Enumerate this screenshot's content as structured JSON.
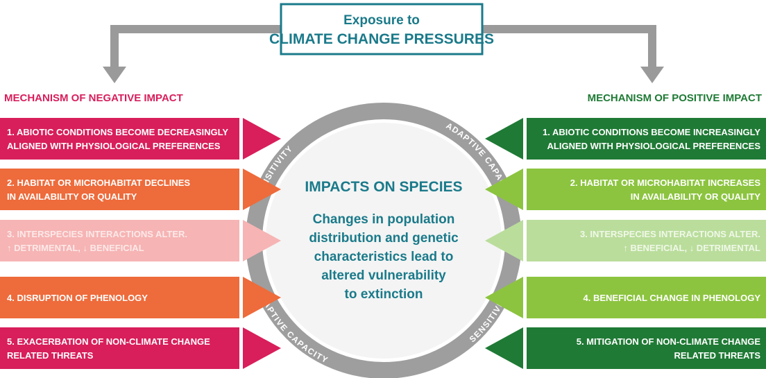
{
  "top_box": {
    "lines": [
      "Exposure to",
      "CLIMATE CHANGE PRESSURES"
    ]
  },
  "left": {
    "heading": "MECHANISM OF NEGATIVE IMPACT",
    "items": [
      {
        "lines": [
          "1. ABIOTIC CONDITIONS BECOME DECREASINGLY",
          "ALIGNED WITH PHYSIOLOGICAL PREFERENCES"
        ]
      },
      {
        "lines": [
          "2. HABITAT OR MICROHABITAT DECLINES",
          "IN AVAILABILITY OR QUALITY"
        ]
      },
      {
        "lines": [
          "3. INTERSPECIES INTERACTIONS ALTER.",
          "↑ DETRIMENTAL, ↓ BENEFICIAL"
        ]
      },
      {
        "lines": [
          "4. DISRUPTION OF PHENOLOGY"
        ]
      },
      {
        "lines": [
          "5. EXACERBATION OF NON-CLIMATE CHANGE",
          "RELATED THREATS"
        ]
      }
    ]
  },
  "right": {
    "heading": "MECHANISM OF POSITIVE IMPACT",
    "items": [
      {
        "lines": [
          "1. ABIOTIC CONDITIONS BECOME INCREASINGLY",
          "ALIGNED WITH PHYSIOLOGICAL PREFERENCES"
        ]
      },
      {
        "lines": [
          "2. HABITAT OR MICROHABITAT INCREASES",
          "IN AVAILABILITY OR QUALITY"
        ]
      },
      {
        "lines": [
          "3. INTERSPECIES INTERACTIONS ALTER.",
          "↑ BENEFICIAL, ↓ DETRIMENTAL"
        ]
      },
      {
        "lines": [
          "4. BENEFICIAL CHANGE IN PHENOLOGY"
        ]
      },
      {
        "lines": [
          "5. MITIGATION OF NON-CLIMATE CHANGE",
          "RELATED THREATS"
        ]
      }
    ]
  },
  "ring": {
    "upper_left": "SENSITIVITY",
    "upper_right": "ADAPTIVE CAPACITY",
    "lower_left": "ADAPTIVE CAPACITY",
    "lower_right": "SENSITIVITY"
  },
  "center": {
    "title": "IMPACTS ON SPECIES",
    "lines": [
      "Changes in population",
      "distribution and genetic",
      "characteristics lead to",
      "altered vulnerability",
      "to extinction"
    ]
  }
}
